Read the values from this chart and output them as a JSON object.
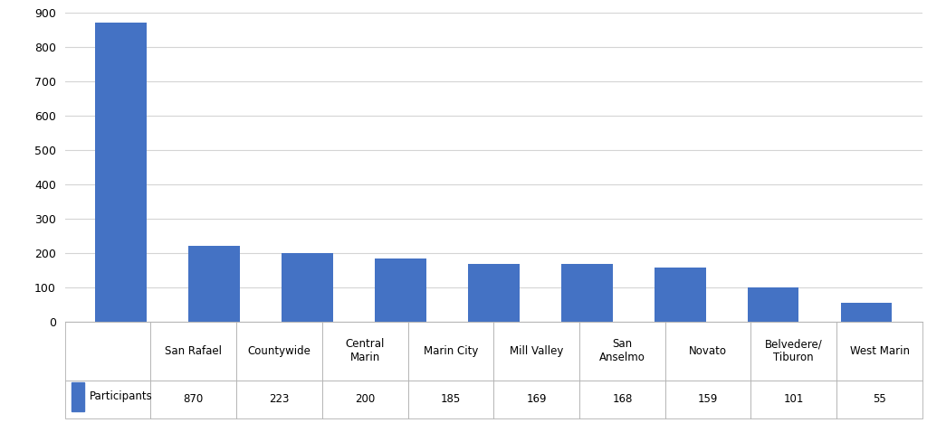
{
  "categories": [
    "San Rafael",
    "Countywide",
    "Central\nMarin",
    "Marin City",
    "Mill Valley",
    "San\nAnselmo",
    "Novato",
    "Belvedere/\nTiburon",
    "West Marin"
  ],
  "categories_flat": [
    "San Rafael",
    "Countywide",
    "Central Marin",
    "Marin City",
    "Mill Valley",
    "San Anselmo",
    "Novato",
    "Belvedere/ Tiburon",
    "West Marin"
  ],
  "values": [
    870,
    223,
    200,
    185,
    169,
    168,
    159,
    101,
    55
  ],
  "bar_color": "#4472C4",
  "legend_label": "Participants",
  "legend_color": "#4472C4",
  "ylim": [
    0,
    900
  ],
  "yticks": [
    0,
    100,
    200,
    300,
    400,
    500,
    600,
    700,
    800,
    900
  ],
  "background_color": "#ffffff",
  "grid_color": "#d4d4d4",
  "table_values": [
    "870",
    "223",
    "200",
    "185",
    "169",
    "168",
    "159",
    "101",
    "55"
  ],
  "fig_width": 10.24,
  "fig_height": 4.68
}
